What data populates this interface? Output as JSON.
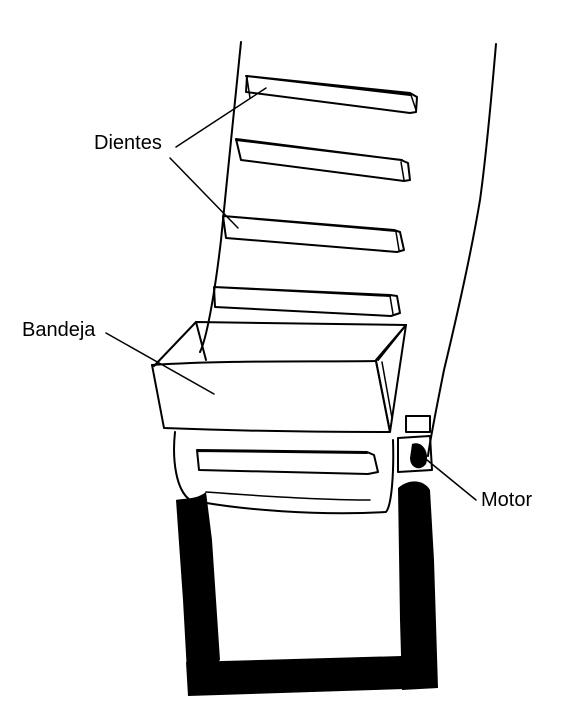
{
  "labels": {
    "dientes": "Dientes",
    "bandeja": "Bandeja",
    "motor": "Motor"
  },
  "colors": {
    "ink": "#000000",
    "paper": "#ffffff"
  }
}
